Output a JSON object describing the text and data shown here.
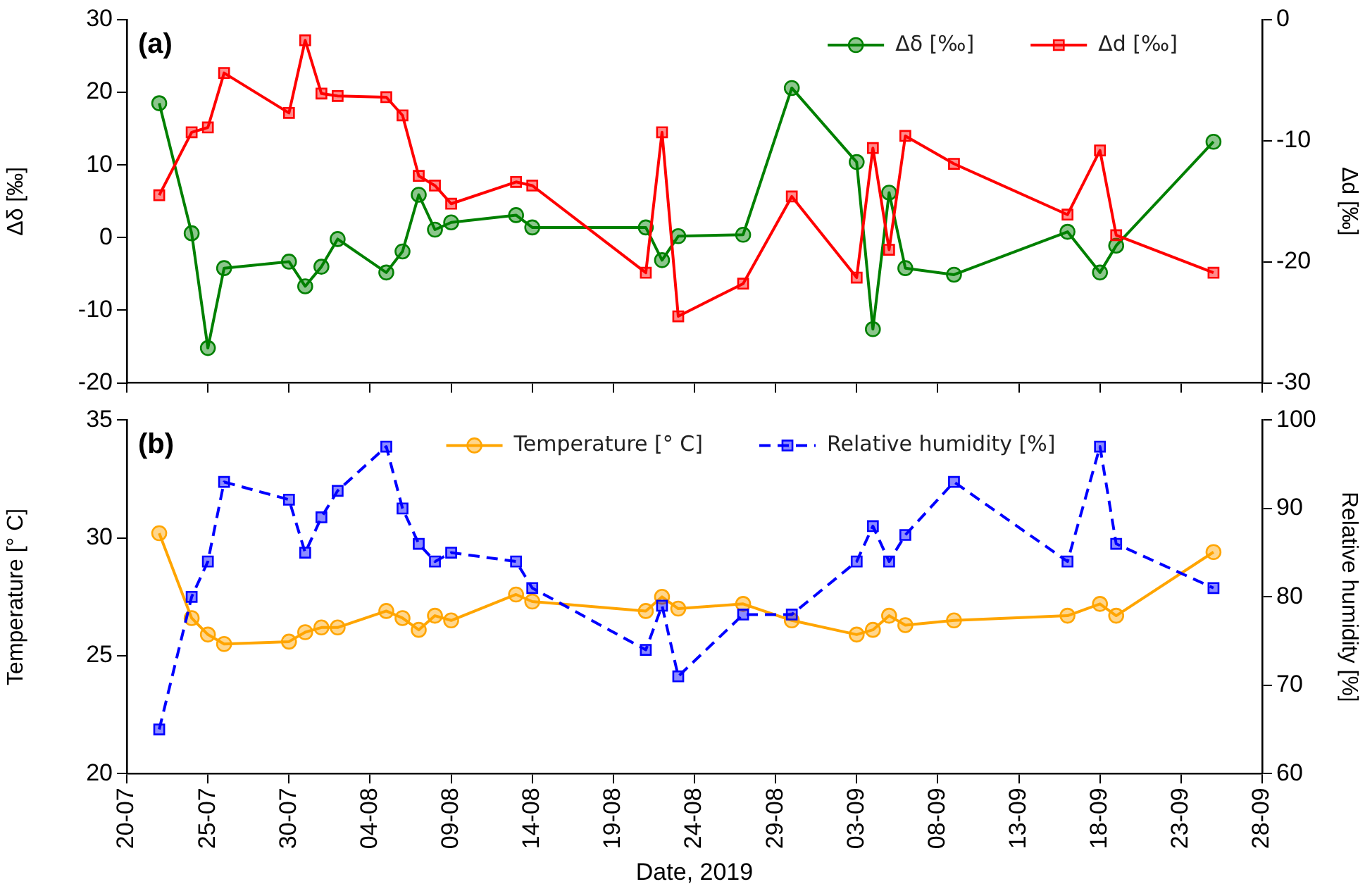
{
  "chart_data": [
    {
      "type": "line",
      "annotations": [
        "(a)"
      ],
      "ylabel": "Δδ [‰]",
      "y2label": "Δd [‰]",
      "legend": "top right",
      "grid": false,
      "tick_labels": "y",
      "xlim": [
        "2019-07-20",
        "2019-09-28"
      ],
      "xticks": [
        {
          "value": "2019-07-20",
          "label": null
        },
        {
          "value": "2019-07-25",
          "label": null
        },
        {
          "value": "2019-07-30",
          "label": null
        },
        {
          "value": "2019-08-04",
          "label": null
        },
        {
          "value": "2019-08-09",
          "label": null
        },
        {
          "value": "2019-08-14",
          "label": null
        },
        {
          "value": "2019-08-19",
          "label": null
        },
        {
          "value": "2019-08-24",
          "label": null
        },
        {
          "value": "2019-08-29",
          "label": null
        },
        {
          "value": "2019-09-03",
          "label": null
        },
        {
          "value": "2019-09-08",
          "label": null
        },
        {
          "value": "2019-09-13",
          "label": null
        },
        {
          "value": "2019-09-18",
          "label": null
        },
        {
          "value": "2019-09-23",
          "label": null
        },
        {
          "value": "2019-09-28",
          "label": null
        }
      ],
      "ylim": [
        -20,
        30
      ],
      "yticks": [
        -20,
        -10,
        0,
        10,
        20,
        30
      ],
      "y2lim": [
        -30,
        0
      ],
      "y2ticks": [
        -30,
        -20,
        -10,
        0
      ],
      "x": [
        "2019-07-22",
        "2019-07-24",
        "2019-07-25",
        "2019-07-26",
        "2019-07-30",
        "2019-07-31",
        "2019-08-01",
        "2019-08-02",
        "2019-08-05",
        "2019-08-06",
        "2019-08-07",
        "2019-08-08",
        "2019-08-09",
        "2019-08-13",
        "2019-08-14",
        "2019-08-21",
        "2019-08-22",
        "2019-08-23",
        "2019-08-27",
        "2019-08-30",
        "2019-09-03",
        "2019-09-04",
        "2019-09-05",
        "2019-09-06",
        "2019-09-09",
        "2019-09-16",
        "2019-09-18",
        "2019-09-19",
        "2019-09-25"
      ],
      "series": [
        {
          "name": "Δδ [‰]",
          "color": "#008000",
          "marker": "circle",
          "line_style": "solid",
          "values": [
            18.5,
            0.6,
            -15.2,
            -4.2,
            -3.3,
            -6.7,
            -4.0,
            -0.2,
            -4.8,
            -1.9,
            5.9,
            1.1,
            2.1,
            3.1,
            1.4,
            1.4,
            -3.1,
            0.2,
            0.4,
            20.6,
            10.4,
            -12.6,
            6.2,
            -4.2,
            -5.1,
            0.8,
            -4.8,
            -1.1,
            13.2
          ]
        },
        {
          "name": "Δd [‰]",
          "color": "#ff0000",
          "marker": "square",
          "line_style": "solid",
          "axis": "y2",
          "values": [
            -14.5,
            -9.3,
            -8.9,
            -4.4,
            -7.7,
            -1.7,
            -6.1,
            -6.3,
            -6.4,
            -7.9,
            -12.9,
            -13.7,
            -15.2,
            -13.4,
            -13.7,
            -20.9,
            -9.3,
            -24.5,
            -21.8,
            -14.6,
            -21.3,
            -10.6,
            -19.0,
            -9.6,
            -11.9,
            -16.1,
            -10.8,
            -17.8,
            -20.9
          ]
        }
      ]
    },
    {
      "type": "line",
      "annotations": [
        "(b)"
      ],
      "xlabel": "Date, 2019",
      "ylabel": "Temperature [° C]",
      "y2label": "Relative humidity [%]",
      "legend": "top",
      "grid": false,
      "xlim": [
        "2019-07-20",
        "2019-09-28"
      ],
      "xticks": [
        {
          "value": "2019-07-20",
          "label": "20-07"
        },
        {
          "value": "2019-07-25",
          "label": "25-07"
        },
        {
          "value": "2019-07-30",
          "label": "30-07"
        },
        {
          "value": "2019-08-04",
          "label": "04-08"
        },
        {
          "value": "2019-08-09",
          "label": "09-08"
        },
        {
          "value": "2019-08-14",
          "label": "14-08"
        },
        {
          "value": "2019-08-19",
          "label": "19-08"
        },
        {
          "value": "2019-08-24",
          "label": "24-08"
        },
        {
          "value": "2019-08-29",
          "label": "29-08"
        },
        {
          "value": "2019-09-03",
          "label": "03-09"
        },
        {
          "value": "2019-09-08",
          "label": "08-09"
        },
        {
          "value": "2019-09-13",
          "label": "13-09"
        },
        {
          "value": "2019-09-18",
          "label": "18-09"
        },
        {
          "value": "2019-09-23",
          "label": "23-09"
        },
        {
          "value": "2019-09-28",
          "label": "28-09"
        }
      ],
      "ylim": [
        20,
        35
      ],
      "yticks": [
        20,
        25,
        30,
        35
      ],
      "y2lim": [
        60,
        100
      ],
      "y2ticks": [
        60,
        70,
        80,
        90,
        100
      ],
      "x": [
        "2019-07-22",
        "2019-07-24",
        "2019-07-25",
        "2019-07-26",
        "2019-07-30",
        "2019-07-31",
        "2019-08-01",
        "2019-08-02",
        "2019-08-05",
        "2019-08-06",
        "2019-08-07",
        "2019-08-08",
        "2019-08-09",
        "2019-08-13",
        "2019-08-14",
        "2019-08-21",
        "2019-08-22",
        "2019-08-23",
        "2019-08-27",
        "2019-08-30",
        "2019-09-03",
        "2019-09-04",
        "2019-09-05",
        "2019-09-06",
        "2019-09-09",
        "2019-09-16",
        "2019-09-18",
        "2019-09-19",
        "2019-09-25"
      ],
      "series": [
        {
          "name": "Temperature [° C]",
          "color": "#ffa500",
          "marker": "circle",
          "line_style": "solid",
          "values": [
            30.2,
            26.6,
            25.9,
            25.5,
            25.6,
            26.0,
            26.2,
            26.2,
            26.9,
            26.6,
            26.1,
            26.7,
            26.5,
            27.6,
            27.3,
            26.9,
            27.5,
            27.0,
            27.2,
            26.5,
            25.9,
            26.1,
            26.7,
            26.3,
            26.5,
            26.7,
            27.2,
            26.7,
            29.4
          ]
        },
        {
          "name": "Relative humidity [%]",
          "color": "#0000ff",
          "marker": "square",
          "line_style": "dashed",
          "axis": "y2",
          "values": [
            65,
            80,
            84,
            93,
            91,
            85,
            89,
            92,
            97,
            90,
            86,
            84,
            85,
            84,
            81,
            74,
            79,
            71,
            78,
            78,
            84,
            88,
            84,
            87,
            93,
            84,
            97,
            86,
            81
          ]
        }
      ]
    }
  ]
}
